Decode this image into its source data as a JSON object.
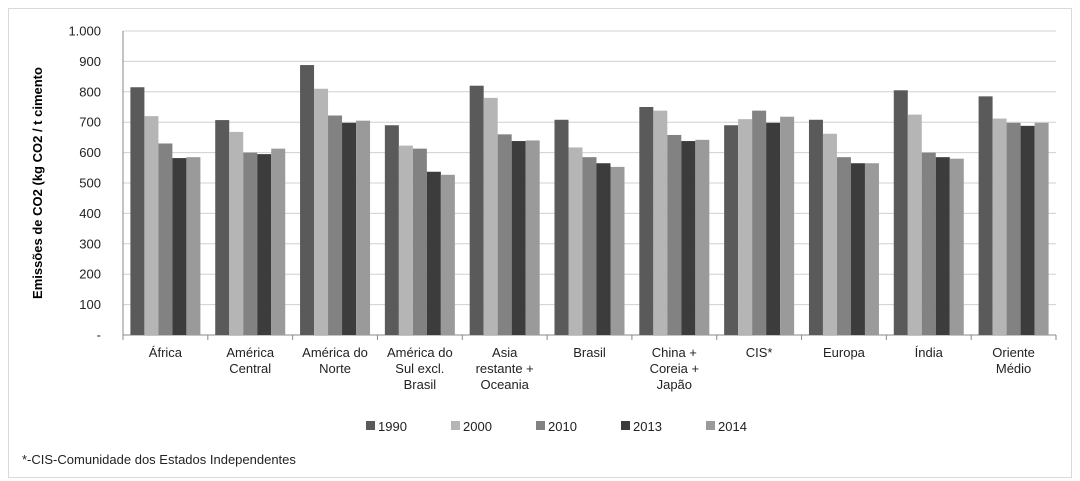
{
  "chart_data": {
    "type": "bar",
    "ylabel": "Emissões de CO2 (kg CO2 / t cimento",
    "ylim": [
      0,
      1000
    ],
    "yticks": [
      "-",
      "100",
      "200",
      "300",
      "400",
      "500",
      "600",
      "700",
      "800",
      "900",
      "1.000"
    ],
    "categories": [
      [
        "África"
      ],
      [
        "América",
        "Central"
      ],
      [
        "América do",
        "Norte"
      ],
      [
        "América do",
        "Sul excl.",
        "Brasil"
      ],
      [
        "Asia",
        "restante +",
        "Oceania"
      ],
      [
        "Brasil"
      ],
      [
        "China +",
        "Coreia +",
        "Japão"
      ],
      [
        "CIS*"
      ],
      [
        "Europa"
      ],
      [
        "Índia"
      ],
      [
        "Oriente",
        "Médio"
      ]
    ],
    "series": [
      {
        "name": "1990",
        "color": "#5a5a5a",
        "values": [
          815,
          707,
          888,
          690,
          820,
          708,
          750,
          690,
          708,
          805,
          785
        ]
      },
      {
        "name": "2000",
        "color": "#b5b5b5",
        "values": [
          720,
          668,
          810,
          623,
          780,
          617,
          738,
          710,
          662,
          725,
          712
        ]
      },
      {
        "name": "2010",
        "color": "#828282",
        "values": [
          630,
          600,
          722,
          613,
          660,
          585,
          658,
          738,
          585,
          600,
          698
        ]
      },
      {
        "name": "2013",
        "color": "#3c3c3c",
        "values": [
          582,
          595,
          698,
          537,
          638,
          565,
          638,
          698,
          565,
          585,
          688
        ]
      },
      {
        "name": "2014",
        "color": "#9a9a9a",
        "values": [
          585,
          613,
          705,
          527,
          640,
          553,
          642,
          718,
          565,
          580,
          698
        ]
      }
    ],
    "legend_position": "bottom",
    "grid": true
  },
  "footnote": "*-CIS-Comunidade dos Estados Independentes"
}
